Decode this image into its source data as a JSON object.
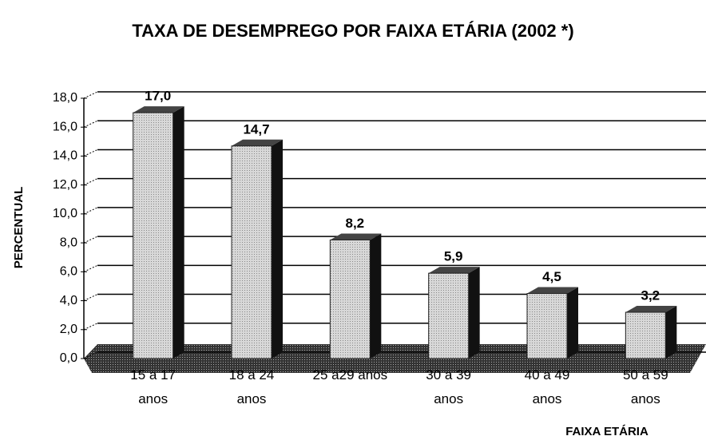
{
  "chart_data": {
    "type": "bar",
    "title": "TAXA DE DESEMPREGO POR FAIXA ETÁRIA (2002 *)",
    "x_label": "FAIXA ETÁRIA",
    "y_label": "PERCENTUAL",
    "categories": [
      "15 a 17\nanos",
      "18 a 24\nanos",
      "25 a29 anos",
      "30 a 39\nanos",
      "40 a 49\nanos",
      "50 a 59\nanos"
    ],
    "values": [
      17.0,
      14.7,
      8.2,
      5.9,
      4.5,
      3.2
    ],
    "value_labels": [
      "17,0",
      "14,7",
      "8,2",
      "5,9",
      "4,5",
      "3,2"
    ],
    "color": "#bdbdbd",
    "ylim": [
      0,
      18
    ],
    "yticks": [
      {
        "value": 0,
        "label": "0,0"
      },
      {
        "value": 2,
        "label": "2,0"
      },
      {
        "value": 4,
        "label": "4,0"
      },
      {
        "value": 6,
        "label": "6,0"
      },
      {
        "value": 8,
        "label": "8,0"
      },
      {
        "value": 10,
        "label": "10,0"
      },
      {
        "value": 12,
        "label": "12,0"
      },
      {
        "value": 14,
        "label": "14,0"
      },
      {
        "value": 16,
        "label": "16,0"
      },
      {
        "value": 18,
        "label": "18,0"
      }
    ],
    "grid": true
  }
}
